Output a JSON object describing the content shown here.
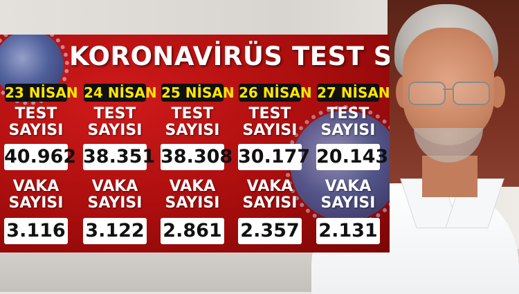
{
  "board": {
    "title": "KORONAVİRÜS TEST SAYILARI",
    "columns": [
      {
        "date": "23 NİSAN",
        "test_label_1": "TEST",
        "test_label_2": "SAYISI",
        "test_value": "40.962",
        "vaka_label_1": "VAKA",
        "vaka_label_2": "SAYISI",
        "vaka_value": "3.116"
      },
      {
        "date": "24 NİSAN",
        "test_label_1": "TEST",
        "test_label_2": "SAYISI",
        "test_value": "38.351",
        "vaka_label_1": "VAKA",
        "vaka_label_2": "SAYISI",
        "vaka_value": "3.122"
      },
      {
        "date": "25 NİSAN",
        "test_label_1": "TEST",
        "test_label_2": "SAYISI",
        "test_value": "38.308",
        "vaka_label_1": "VAKA",
        "vaka_label_2": "SAYISI",
        "vaka_value": "2.861"
      },
      {
        "date": "26 NİSAN",
        "test_label_1": "TEST",
        "test_label_2": "SAYISI",
        "test_value": "30.177",
        "vaka_label_1": "VAKA",
        "vaka_label_2": "SAYISI",
        "vaka_value": "2.357"
      },
      {
        "date": "27 NİSAN",
        "test_label_1": "TEST",
        "test_label_2": "SAYISI",
        "test_value": "20.143",
        "vaka_label_1": "VAKA",
        "vaka_label_2": "SAYISI",
        "vaka_value": "2.131"
      }
    ]
  },
  "colors": {
    "board_red": "#b00f0f",
    "date_yellow": "#ffe600",
    "date_bg": "#101010",
    "label_white": "#ffffff",
    "value_bg": "#ffffff"
  },
  "icons": [
    "virus-icon",
    "virus-icon"
  ]
}
